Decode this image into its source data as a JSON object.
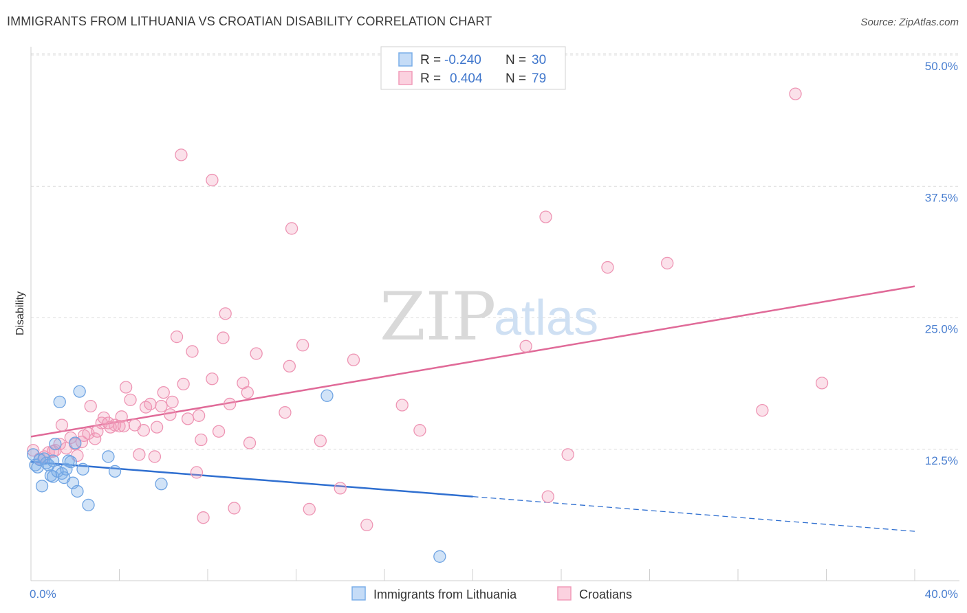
{
  "header": {
    "title": "IMMIGRANTS FROM LITHUANIA VS CROATIAN DISABILITY CORRELATION CHART",
    "source": "Source: ZipAtlas.com"
  },
  "watermark": {
    "zip": "ZIP",
    "atlas": "atlas"
  },
  "colors": {
    "blue": "#7aaee8",
    "blue_line": "#2f6fd0",
    "pink": "#f19ab8",
    "pink_line": "#e06a98",
    "tick": "#4a7fd0",
    "grid": "#dcdcdc"
  },
  "legend": {
    "rows": [
      {
        "r_label": "R =",
        "r_value": "-0.240",
        "n_label": "N =",
        "n_value": "30",
        "color": "blue"
      },
      {
        "r_label": "R =",
        "r_value": "0.404",
        "n_label": "N =",
        "n_value": "79",
        "color": "pink"
      }
    ]
  },
  "bottom_legend": [
    {
      "label": "Immigrants from Lithuania",
      "color": "blue"
    },
    {
      "label": "Croatians",
      "color": "pink"
    }
  ],
  "chart_data": {
    "type": "scatter",
    "title": "IMMIGRANTS FROM LITHUANIA VS CROATIAN DISABILITY CORRELATION CHART",
    "xlabel": "",
    "ylabel": "Disability",
    "xlim": [
      0,
      40
    ],
    "ylim": [
      0,
      50
    ],
    "x_tick_labels": [
      "0.0%",
      "40.0%"
    ],
    "y_ticks": [
      12.5,
      25.0,
      37.5,
      50.0
    ],
    "y_tick_labels": [
      "12.5%",
      "25.0%",
      "37.5%",
      "50.0%"
    ],
    "grid": "horizontal dashed",
    "legend_position": "top-center",
    "series": [
      {
        "name": "Immigrants from Lithuania",
        "color": "blue",
        "R": -0.24,
        "N": 30,
        "trend": {
          "x0": 0,
          "y0": 11.3,
          "x1": 20,
          "y1": 8.0,
          "x_dash_end": 40,
          "y_dash_end": 4.7
        },
        "points": [
          [
            0.1,
            12.0
          ],
          [
            0.2,
            11.0
          ],
          [
            0.3,
            10.8
          ],
          [
            0.4,
            11.5
          ],
          [
            0.5,
            9.0
          ],
          [
            0.6,
            11.6
          ],
          [
            0.7,
            11.2
          ],
          [
            0.8,
            11.0
          ],
          [
            0.9,
            10.0
          ],
          [
            1.0,
            11.4
          ],
          [
            1.0,
            9.9
          ],
          [
            1.1,
            13.0
          ],
          [
            1.2,
            10.4
          ],
          [
            1.3,
            17.0
          ],
          [
            1.4,
            10.2
          ],
          [
            1.5,
            9.8
          ],
          [
            1.6,
            10.6
          ],
          [
            1.7,
            11.4
          ],
          [
            1.8,
            11.3
          ],
          [
            1.9,
            9.3
          ],
          [
            2.0,
            13.1
          ],
          [
            2.1,
            8.5
          ],
          [
            2.2,
            18.0
          ],
          [
            2.35,
            10.6
          ],
          [
            2.6,
            7.2
          ],
          [
            3.5,
            11.8
          ],
          [
            3.8,
            10.4
          ],
          [
            5.9,
            9.2
          ],
          [
            13.4,
            17.6
          ],
          [
            18.5,
            2.3
          ]
        ]
      },
      {
        "name": "Croatians",
        "color": "pink",
        "R": 0.404,
        "N": 79,
        "trend": {
          "x0": 0,
          "y0": 13.7,
          "x1": 40,
          "y1": 28.0
        },
        "points": [
          [
            0.1,
            12.4
          ],
          [
            0.4,
            11.6
          ],
          [
            0.6,
            11.8
          ],
          [
            0.8,
            12.2
          ],
          [
            1.0,
            12.3
          ],
          [
            1.1,
            12.4
          ],
          [
            1.3,
            13.0
          ],
          [
            1.4,
            14.8
          ],
          [
            1.6,
            12.6
          ],
          [
            1.8,
            13.6
          ],
          [
            2.0,
            13.0
          ],
          [
            2.1,
            11.9
          ],
          [
            2.3,
            13.2
          ],
          [
            2.4,
            13.8
          ],
          [
            2.6,
            14.0
          ],
          [
            2.7,
            16.6
          ],
          [
            2.9,
            13.5
          ],
          [
            3.0,
            14.2
          ],
          [
            3.2,
            15.0
          ],
          [
            3.3,
            15.5
          ],
          [
            3.5,
            15.0
          ],
          [
            3.6,
            14.6
          ],
          [
            3.8,
            14.8
          ],
          [
            4.0,
            14.7
          ],
          [
            4.1,
            15.6
          ],
          [
            4.2,
            14.7
          ],
          [
            4.3,
            18.4
          ],
          [
            4.5,
            17.2
          ],
          [
            4.7,
            14.8
          ],
          [
            4.9,
            12.0
          ],
          [
            5.1,
            14.3
          ],
          [
            5.2,
            16.5
          ],
          [
            5.4,
            16.8
          ],
          [
            5.6,
            11.8
          ],
          [
            5.7,
            14.6
          ],
          [
            5.9,
            16.6
          ],
          [
            6.0,
            17.9
          ],
          [
            6.3,
            15.8
          ],
          [
            6.4,
            17.0
          ],
          [
            6.6,
            23.2
          ],
          [
            6.8,
            40.5
          ],
          [
            6.9,
            18.7
          ],
          [
            7.1,
            15.4
          ],
          [
            7.3,
            21.8
          ],
          [
            7.5,
            10.3
          ],
          [
            7.6,
            15.7
          ],
          [
            7.7,
            13.4
          ],
          [
            7.8,
            6.0
          ],
          [
            8.2,
            38.1
          ],
          [
            8.2,
            19.2
          ],
          [
            8.5,
            14.2
          ],
          [
            8.7,
            23.1
          ],
          [
            8.8,
            25.4
          ],
          [
            9.0,
            16.8
          ],
          [
            9.2,
            6.9
          ],
          [
            9.6,
            18.8
          ],
          [
            9.8,
            17.9
          ],
          [
            9.9,
            13.1
          ],
          [
            10.2,
            21.6
          ],
          [
            11.5,
            16.0
          ],
          [
            11.7,
            20.4
          ],
          [
            11.8,
            33.5
          ],
          [
            12.3,
            22.4
          ],
          [
            12.6,
            6.8
          ],
          [
            13.1,
            13.3
          ],
          [
            14.0,
            8.8
          ],
          [
            14.6,
            21.0
          ],
          [
            15.2,
            5.3
          ],
          [
            16.8,
            16.7
          ],
          [
            17.6,
            14.3
          ],
          [
            22.4,
            22.3
          ],
          [
            23.3,
            34.6
          ],
          [
            23.4,
            8.0
          ],
          [
            24.3,
            12.0
          ],
          [
            26.1,
            29.8
          ],
          [
            28.8,
            30.2
          ],
          [
            33.1,
            16.2
          ],
          [
            34.6,
            46.3
          ],
          [
            35.8,
            18.8
          ]
        ]
      }
    ]
  }
}
